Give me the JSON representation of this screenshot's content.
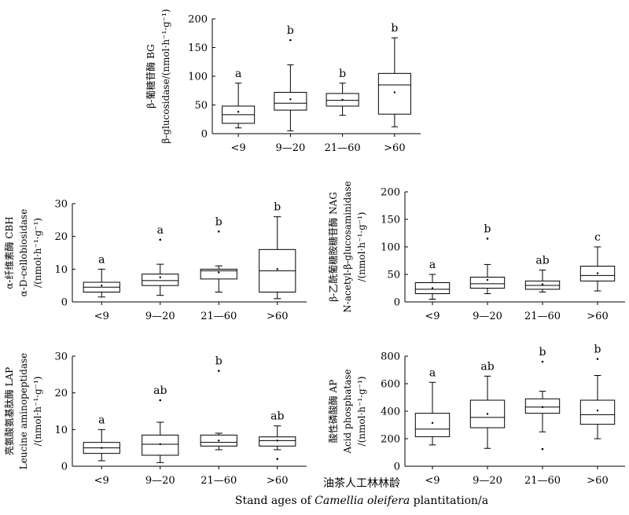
{
  "chart_data": [
    {
      "type": "box",
      "title": "",
      "ylabel_lines": [
        "β-葡糖苷酶 BG",
        "β-glucosidase/(nmol·h⁻¹·g⁻¹)"
      ],
      "categories": [
        "<9",
        "9—20",
        "21—60",
        ">60"
      ],
      "ylim": [
        0,
        200
      ],
      "yticks": [
        0,
        50,
        100,
        150,
        200
      ],
      "boxes": [
        {
          "min": 10,
          "q1": 18,
          "median": 33,
          "q3": 48,
          "max": 88,
          "mean": 38,
          "outliers": [],
          "letter": "a"
        },
        {
          "min": 5,
          "q1": 41,
          "median": 53,
          "q3": 72,
          "max": 120,
          "mean": 60,
          "outliers": [
            163
          ],
          "letter": "b"
        },
        {
          "min": 32,
          "q1": 48,
          "median": 58,
          "q3": 70,
          "max": 88,
          "mean": 59,
          "outliers": [],
          "letter": "b"
        },
        {
          "min": 12,
          "q1": 34,
          "median": 85,
          "q3": 105,
          "max": 167,
          "mean": 72,
          "outliers": [],
          "letter": "b"
        }
      ]
    },
    {
      "type": "box",
      "title": "",
      "ylabel_lines": [
        "α-纤维素酶 CBH",
        "α-D-cellobiosidase",
        "/(nmol·h⁻¹·g⁻¹)"
      ],
      "categories": [
        "<9",
        "9—20",
        "21—60",
        ">60"
      ],
      "ylim": [
        0,
        30
      ],
      "yticks": [
        0,
        10,
        20,
        30
      ],
      "boxes": [
        {
          "min": 1.5,
          "q1": 3,
          "median": 4.5,
          "q3": 6,
          "max": 10,
          "mean": 5,
          "outliers": [],
          "letter": "a"
        },
        {
          "min": 2,
          "q1": 5,
          "median": 6.5,
          "q3": 8.5,
          "max": 11.5,
          "mean": 7.5,
          "outliers": [
            19
          ],
          "letter": "a"
        },
        {
          "min": 3,
          "q1": 7,
          "median": 9.5,
          "q3": 10,
          "max": 11,
          "mean": 9,
          "outliers": [
            21.5
          ],
          "letter": "b"
        },
        {
          "min": 1,
          "q1": 3,
          "median": 9.5,
          "q3": 16,
          "max": 26,
          "mean": 10,
          "outliers": [],
          "letter": "b"
        }
      ]
    },
    {
      "type": "box",
      "title": "",
      "ylabel_lines": [
        "β-乙酰葡糖胺糖苷酶 NAG",
        "N-acetyl-β-glucosaminidase",
        "/(nmol·h⁻¹·g⁻¹)"
      ],
      "categories": [
        "<9",
        "9—20",
        "21—60",
        ">60"
      ],
      "ylim": [
        0,
        200
      ],
      "yticks": [
        0,
        50,
        100,
        150,
        200
      ],
      "boxes": [
        {
          "min": 5,
          "q1": 15,
          "median": 23,
          "q3": 35,
          "max": 50,
          "mean": 25,
          "outliers": [],
          "letter": "a"
        },
        {
          "min": 15,
          "q1": 25,
          "median": 33,
          "q3": 45,
          "max": 68,
          "mean": 40,
          "outliers": [
            115
          ],
          "letter": "b"
        },
        {
          "min": 18,
          "q1": 23,
          "median": 30,
          "q3": 38,
          "max": 58,
          "mean": 32,
          "outliers": [],
          "letter": "ab"
        },
        {
          "min": 20,
          "q1": 38,
          "median": 48,
          "q3": 65,
          "max": 100,
          "mean": 52,
          "outliers": [],
          "letter": "c"
        }
      ]
    },
    {
      "type": "box",
      "title": "",
      "ylabel_lines": [
        "亮氨酸氨基肽酶 LAP",
        "Leucine aminopeptidase",
        "/(nmol·h⁻¹·g⁻¹)"
      ],
      "categories": [
        "<9",
        "9—20",
        "21—60",
        ">60"
      ],
      "ylim": [
        0,
        30
      ],
      "yticks": [
        0,
        10,
        20,
        30
      ],
      "boxes": [
        {
          "min": 1.5,
          "q1": 3.5,
          "median": 5,
          "q3": 6.5,
          "max": 10,
          "mean": 5,
          "outliers": [],
          "letter": "a"
        },
        {
          "min": 1,
          "q1": 3,
          "median": 6,
          "q3": 8.5,
          "max": 12,
          "mean": 6,
          "outliers": [
            18
          ],
          "letter": "ab"
        },
        {
          "min": 4.5,
          "q1": 5.5,
          "median": 6.5,
          "q3": 8.5,
          "max": 9,
          "mean": 7,
          "outliers": [
            26
          ],
          "letter": "b"
        },
        {
          "min": 4.5,
          "q1": 5.5,
          "median": 7,
          "q3": 8,
          "max": 11,
          "mean": 7,
          "outliers": [
            2
          ],
          "letter": "ab"
        }
      ]
    },
    {
      "type": "box",
      "title": "",
      "ylabel_lines": [
        "酸性磷酸酶 AP",
        "Acid phosphatase",
        "/(nmol·h⁻¹·g⁻¹)"
      ],
      "categories": [
        "<9",
        "9—20",
        "21—60",
        ">60"
      ],
      "ylim": [
        0,
        800
      ],
      "yticks": [
        0,
        200,
        400,
        600,
        800
      ],
      "boxes": [
        {
          "min": 155,
          "q1": 215,
          "median": 270,
          "q3": 385,
          "max": 610,
          "mean": 315,
          "outliers": [],
          "letter": "a"
        },
        {
          "min": 130,
          "q1": 280,
          "median": 355,
          "q3": 480,
          "max": 655,
          "mean": 380,
          "outliers": [],
          "letter": "ab"
        },
        {
          "min": 250,
          "q1": 385,
          "median": 430,
          "q3": 490,
          "max": 545,
          "mean": 430,
          "outliers": [
            125,
            760
          ],
          "letter": "b"
        },
        {
          "min": 200,
          "q1": 305,
          "median": 375,
          "q3": 480,
          "max": 660,
          "mean": 405,
          "outliers": [
            780
          ],
          "letter": "b"
        }
      ]
    }
  ],
  "footer": {
    "line1": "油茶人工林林龄",
    "line2_pre": "Stand ages of ",
    "line2_italic": "Camellia oleifera",
    "line2_post": " plantitation/a"
  }
}
